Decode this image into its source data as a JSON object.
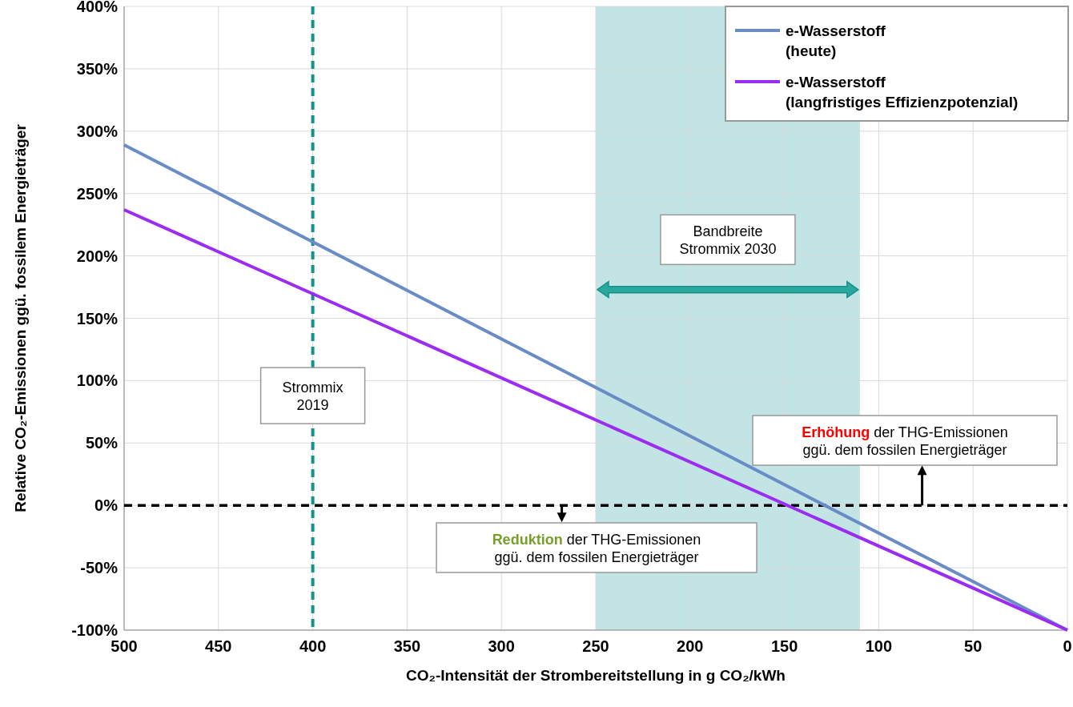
{
  "chart_data": {
    "type": "line",
    "xlabel": "CO₂-Intensität der Strombereitstellung in g CO₂/kWh",
    "ylabel": "Relative CO₂-Emissionen ggü. fossilem Energieträger",
    "xlim": [
      500,
      0
    ],
    "xticks": [
      500,
      450,
      400,
      350,
      300,
      250,
      200,
      150,
      100,
      50,
      0
    ],
    "ylim": [
      -100,
      400
    ],
    "yticks": [
      {
        "value": -100,
        "label": "-100%"
      },
      {
        "value": -50,
        "label": "-50%"
      },
      {
        "value": 0,
        "label": "0%"
      },
      {
        "value": 50,
        "label": "50%"
      },
      {
        "value": 100,
        "label": "100%"
      },
      {
        "value": 150,
        "label": "150%"
      },
      {
        "value": 200,
        "label": "200%"
      },
      {
        "value": 250,
        "label": "250%"
      },
      {
        "value": 300,
        "label": "300%"
      },
      {
        "value": 350,
        "label": "350%"
      },
      {
        "value": 400,
        "label": "400%"
      }
    ],
    "x": [
      500,
      0
    ],
    "series": [
      {
        "name": "e-Wasserstoff (heute)",
        "color": "#6a8cc6",
        "values": [
          289,
          -100
        ]
      },
      {
        "name": "e-Wasserstoff (langfristiges Effizienzpotenzial)",
        "color": "#9b2cf2",
        "values": [
          237,
          -100
        ]
      }
    ],
    "ref_lines": [
      {
        "axis": "x",
        "value": 400,
        "label": "Strommix 2019",
        "color": "#16918a",
        "line_style": "dashed"
      },
      {
        "axis": "y",
        "value": 0,
        "color": "#000000",
        "line_style": "dashed"
      }
    ],
    "bands": [
      {
        "axis": "x",
        "from": 250,
        "to": 110,
        "label": "Bandbreite Strommix 2030",
        "color": "#c2e4e4"
      }
    ],
    "annotations": [
      {
        "text": "Erhöhung der THG-Emissionen ggü. dem fossilen Energieträger",
        "x": 77,
        "y": 0
      },
      {
        "text": "Reduktion der THG-Emissionen ggü. dem fossilen Energieträger",
        "x": 268,
        "y": 0
      }
    ],
    "grid": true,
    "legend": "top right",
    "line_style": "solid"
  }
}
